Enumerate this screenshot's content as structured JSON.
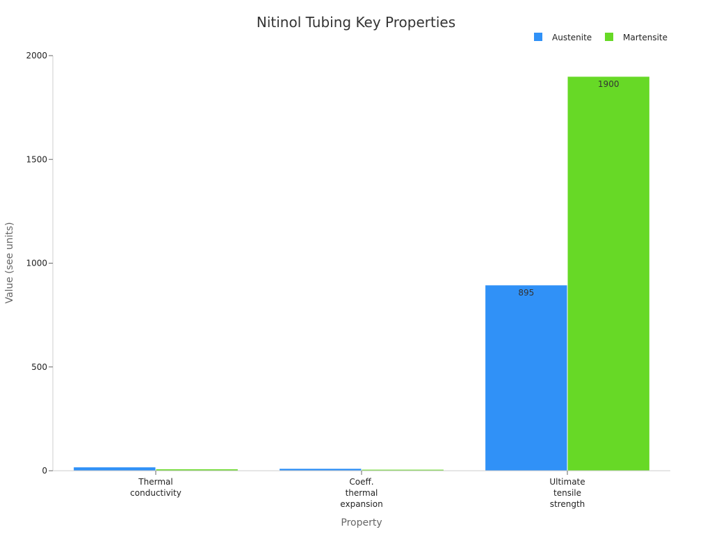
{
  "colors": {
    "austenite": "#3091f7",
    "martensite": "#67d926"
  },
  "chart_data": {
    "type": "bar",
    "title": "Nitinol Tubing Key Properties",
    "xlabel": "Property",
    "ylabel": "Value (see units)",
    "categories": [
      [
        "Thermal",
        "conductivity"
      ],
      [
        "Coeff.",
        "thermal",
        "expansion"
      ],
      [
        "Ultimate",
        "tensile",
        "strength"
      ]
    ],
    "series": [
      {
        "name": "Austenite",
        "color": "#3091f7",
        "values": [
          18,
          11,
          895
        ],
        "labels": [
          "",
          "",
          "895"
        ]
      },
      {
        "name": "Martensite",
        "color": "#67d926",
        "values": [
          8.6,
          6.6,
          1900
        ],
        "labels": [
          "",
          "",
          "1900"
        ]
      }
    ],
    "ylim": [
      0,
      2000
    ],
    "yticks": [
      "0",
      "500",
      "1000",
      "1500",
      "2000"
    ],
    "ytick_values": [
      0,
      500,
      1000,
      1500,
      2000
    ],
    "grid": false,
    "legend": "top-right"
  }
}
